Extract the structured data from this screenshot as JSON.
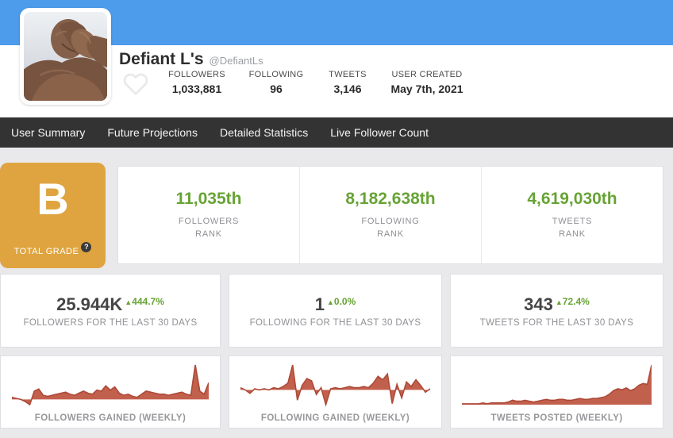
{
  "header": {
    "name": "Defiant L's",
    "handle": "@DefiantLs",
    "stats": [
      {
        "label": "FOLLOWERS",
        "value": "1,033,881"
      },
      {
        "label": "FOLLOWING",
        "value": "96"
      },
      {
        "label": "TWEETS",
        "value": "3,146"
      },
      {
        "label": "USER CREATED",
        "value": "May 7th, 2021"
      }
    ]
  },
  "nav": {
    "items": [
      {
        "label": "User Summary"
      },
      {
        "label": "Future Projections"
      },
      {
        "label": "Detailed Statistics"
      },
      {
        "label": "Live Follower Count"
      }
    ]
  },
  "grade": {
    "letter": "B",
    "label": "TOTAL GRADE",
    "help_glyph": "?"
  },
  "ranks": [
    {
      "value": "11,035th",
      "line1": "FOLLOWERS",
      "line2": "RANK"
    },
    {
      "value": "8,182,638th",
      "line1": "FOLLOWING",
      "line2": "RANK"
    },
    {
      "value": "4,619,030th",
      "line1": "TWEETS",
      "line2": "RANK"
    }
  ],
  "stats_30_days": [
    {
      "value": "25.944K",
      "arrow": "▲",
      "delta": "444.7%",
      "label": "FOLLOWERS FOR THE LAST 30 DAYS"
    },
    {
      "value": "1",
      "arrow": "▲",
      "delta": "0.0%",
      "label": "FOLLOWING FOR THE LAST 30 DAYS"
    },
    {
      "value": "343",
      "arrow": "▲",
      "delta": "72.4%",
      "label": "TWEETS FOR THE LAST 30 DAYS"
    }
  ],
  "icons": {
    "heart": "heart-outline",
    "help": "question-mark"
  },
  "colors": {
    "accent_blue": "#4d9ceb",
    "nav_bg": "#333333",
    "grade_bg": "#dfa440",
    "rank_green": "#67a335",
    "delta_green": "#67a335",
    "spark_fill": "#c2604e",
    "spark_stroke": "#ae4937",
    "page_bg": "#e9e9ec"
  },
  "chart_data": [
    {
      "type": "area",
      "title": "FOLLOWERS GAINED (WEEKLY)",
      "axes": "hidden-sparkline",
      "values": [
        2,
        1,
        0,
        -2,
        -5,
        8,
        10,
        4,
        3,
        4,
        5,
        6,
        7,
        5,
        4,
        6,
        8,
        6,
        5,
        9,
        8,
        13,
        9,
        12,
        6,
        4,
        5,
        3,
        2,
        5,
        8,
        7,
        6,
        5,
        5,
        4,
        5,
        6,
        7,
        5,
        4,
        33,
        8,
        5,
        16
      ]
    },
    {
      "type": "area",
      "title": "FOLLOWING GAINED (WEEKLY)",
      "axes": "hidden-sparkline",
      "values": [
        2,
        0,
        -3,
        1,
        0,
        1,
        0,
        2,
        1,
        3,
        6,
        22,
        -9,
        4,
        10,
        8,
        -4,
        2,
        -13,
        1,
        2,
        1,
        2,
        3,
        2,
        2,
        3,
        2,
        6,
        12,
        9,
        14,
        -12,
        5,
        -7,
        7,
        3,
        9,
        4,
        -2,
        1
      ]
    },
    {
      "type": "area",
      "title": "TWEETS POSTED (WEEKLY)",
      "axes": "hidden-sparkline",
      "values": [
        1,
        1,
        1,
        1,
        1,
        2,
        1,
        2,
        2,
        2,
        2,
        3,
        5,
        4,
        4,
        5,
        4,
        3,
        4,
        5,
        6,
        5,
        5,
        6,
        6,
        5,
        5,
        6,
        7,
        6,
        6,
        7,
        7,
        8,
        9,
        12,
        16,
        18,
        17,
        19,
        16,
        18,
        22,
        24,
        23,
        45
      ]
    }
  ]
}
